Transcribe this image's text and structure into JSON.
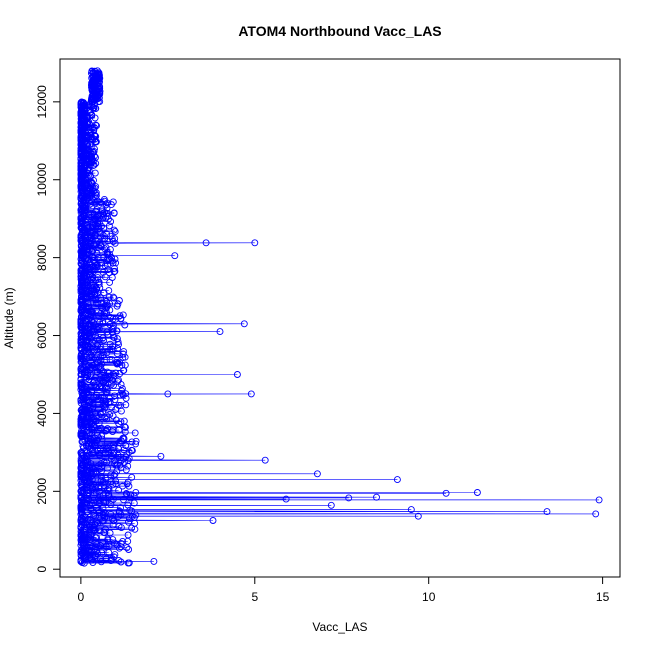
{
  "chart_data": {
    "type": "scatter",
    "title": "ATOM4 Northbound Vacc_LAS",
    "xlabel": "Vacc_LAS",
    "ylabel": "Altitude (m)",
    "xlim": [
      -0.6,
      15.5
    ],
    "ylim": [
      -200,
      13100
    ],
    "x_ticks": [
      0,
      5,
      10,
      15
    ],
    "y_ticks": [
      0,
      2000,
      4000,
      6000,
      8000,
      10000,
      12000
    ],
    "x_tick_labels": [
      "0",
      "5",
      "10",
      "15"
    ],
    "y_tick_labels": [
      "0",
      "2000",
      "4000",
      "6000",
      "8000",
      "10000",
      "12000"
    ],
    "grid": false,
    "marker": "open-circle",
    "line_style": "connected",
    "series_color": "#0000ff",
    "altitude_range": [
      150,
      12800
    ],
    "highlighted_points": [
      {
        "x": 14.9,
        "y": 1780
      },
      {
        "x": 14.8,
        "y": 1420
      },
      {
        "x": 13.4,
        "y": 1480
      },
      {
        "x": 11.4,
        "y": 1970
      },
      {
        "x": 10.5,
        "y": 1950
      },
      {
        "x": 9.7,
        "y": 1360
      },
      {
        "x": 9.5,
        "y": 1530
      },
      {
        "x": 9.1,
        "y": 2300
      },
      {
        "x": 8.5,
        "y": 1850
      },
      {
        "x": 7.7,
        "y": 1830
      },
      {
        "x": 7.2,
        "y": 1640
      },
      {
        "x": 6.8,
        "y": 2450
      },
      {
        "x": 5.9,
        "y": 1800
      },
      {
        "x": 5.3,
        "y": 2800
      },
      {
        "x": 5.0,
        "y": 8380
      },
      {
        "x": 4.9,
        "y": 4500
      },
      {
        "x": 4.7,
        "y": 6300
      },
      {
        "x": 4.5,
        "y": 5000
      },
      {
        "x": 4.0,
        "y": 6100
      },
      {
        "x": 3.6,
        "y": 8380
      },
      {
        "x": 3.8,
        "y": 1250
      },
      {
        "x": 2.7,
        "y": 8050
      },
      {
        "x": 2.5,
        "y": 4500
      },
      {
        "x": 2.3,
        "y": 2900
      },
      {
        "x": 2.1,
        "y": 200
      }
    ]
  }
}
